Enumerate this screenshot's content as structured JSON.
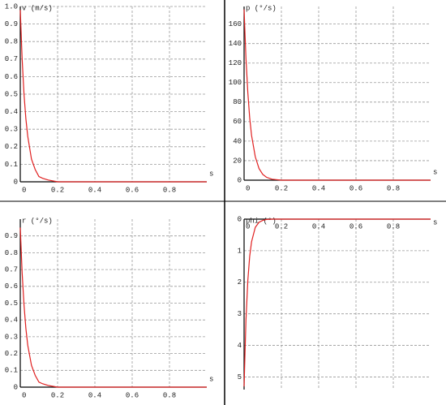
{
  "chart_data": [
    {
      "type": "line",
      "y_label": "v (m/s)",
      "x_label": "s",
      "x": [
        0,
        0.01,
        0.02,
        0.03,
        0.04,
        0.06,
        0.08,
        0.1,
        0.12,
        0.15,
        0.2,
        1.0
      ],
      "series": [
        {
          "color": "#e02020",
          "values": [
            0.98,
            0.7,
            0.5,
            0.36,
            0.26,
            0.13,
            0.07,
            0.03,
            0.02,
            0.01,
            0,
            0
          ]
        }
      ],
      "xlim": [
        0,
        1
      ],
      "xticks": [
        0,
        0.2,
        0.4,
        0.6,
        0.8
      ],
      "ylim": [
        0,
        1
      ],
      "yticks": [
        0,
        0.1,
        0.2,
        0.3,
        0.4,
        0.5,
        0.6,
        0.7,
        0.8,
        0.9,
        {
          "value": 1,
          "label": "1.0"
        }
      ],
      "grid": true,
      "y_inverted": false
    },
    {
      "type": "line",
      "y_label": "p (°/s)",
      "x_label": "s",
      "x": [
        0,
        0.01,
        0.02,
        0.03,
        0.04,
        0.06,
        0.08,
        0.1,
        0.12,
        0.15,
        0.2,
        1.0
      ],
      "series": [
        {
          "color": "#e02020",
          "values": [
            175,
            125,
            90,
            64,
            46,
            24,
            12,
            6,
            3,
            1,
            0,
            0
          ]
        }
      ],
      "xlim": [
        0,
        1
      ],
      "xticks": [
        0,
        0.2,
        0.4,
        0.6,
        0.8
      ],
      "ylim": [
        0,
        178
      ],
      "yticks": [
        0,
        20,
        40,
        60,
        80,
        100,
        120,
        140,
        160
      ],
      "grid": true,
      "y_inverted": false
    },
    {
      "type": "line",
      "y_label": "r (°/s)",
      "x_label": "s",
      "x": [
        0,
        0.01,
        0.02,
        0.03,
        0.04,
        0.06,
        0.08,
        0.1,
        0.12,
        0.15,
        0.2,
        1.0
      ],
      "series": [
        {
          "color": "#e02020",
          "values": [
            0.95,
            0.68,
            0.49,
            0.35,
            0.25,
            0.13,
            0.07,
            0.03,
            0.02,
            0.01,
            0,
            0
          ]
        }
      ],
      "xlim": [
        0,
        1
      ],
      "xticks": [
        0,
        0.2,
        0.4,
        0.6,
        0.8
      ],
      "ylim": [
        0,
        1
      ],
      "yticks": [
        0,
        0.1,
        0.2,
        0.3,
        0.4,
        0.5,
        0.6,
        0.7,
        0.8,
        0.9
      ],
      "grid": true,
      "y_inverted": false
    },
    {
      "type": "line",
      "y_label": "phi (°)",
      "x_label": "s",
      "x": [
        0,
        0.01,
        0.02,
        0.03,
        0.04,
        0.06,
        0.08,
        0.1,
        0.12,
        0.15,
        0.2,
        1.0
      ],
      "series": [
        {
          "color": "#e02020",
          "values": [
            5.3,
            3.2,
            1.95,
            1.18,
            0.72,
            0.26,
            0.1,
            0.04,
            0.01,
            0,
            0,
            0
          ]
        }
      ],
      "xlim": [
        0,
        1
      ],
      "xticks": [
        0,
        0.2,
        0.4,
        0.6,
        0.8
      ],
      "ylim": [
        0,
        5.4
      ],
      "yticks": [
        0,
        1,
        2,
        3,
        4,
        5
      ],
      "grid": true,
      "y_inverted": true
    }
  ]
}
